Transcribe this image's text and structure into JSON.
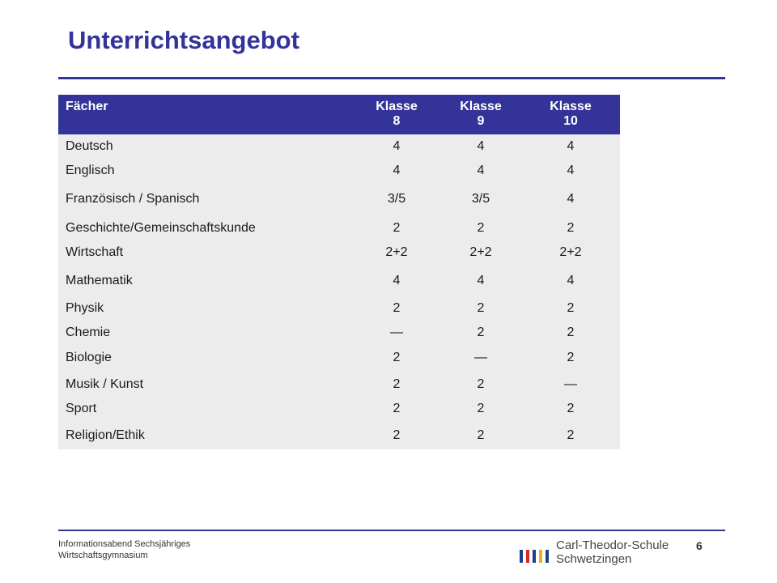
{
  "slide": {
    "title": "Unterrichtsangebot",
    "page_number": "6",
    "footer_line1": "Informationsabend Sechsjähriges",
    "footer_line2": "Wirtschaftsgymnasium"
  },
  "logo": {
    "name_line1": "Carl-Theodor-Schule",
    "name_line2": "Schwetzingen",
    "bar_colors": [
      "#1c3f8c",
      "#d52b2b",
      "#1c3f8c",
      "#e8b21a",
      "#1c3f8c"
    ]
  },
  "colors": {
    "accent": "#33339a",
    "table_background": "#ececec"
  },
  "table": {
    "header": {
      "subject": "Fächer",
      "columns": [
        {
          "line1": "Klasse",
          "line2": "8"
        },
        {
          "line1": "Klasse",
          "line2": "9"
        },
        {
          "line1": "Klasse",
          "line2": "10"
        }
      ]
    },
    "rows": [
      {
        "subject": "Deutsch",
        "values": [
          "4",
          "4",
          "4"
        ]
      },
      {
        "subject": "Englisch",
        "values": [
          "4",
          "4",
          "4"
        ]
      },
      {
        "subject": "Französisch / Spanisch",
        "values": [
          "3/5",
          "3/5",
          "4"
        ]
      },
      {
        "subject": "Geschichte/Gemeinschaftskunde",
        "values": [
          "2",
          "2",
          "2"
        ]
      },
      {
        "subject": "Wirtschaft",
        "values": [
          "2+2",
          "2+2",
          "2+2"
        ]
      },
      {
        "subject": "Mathematik",
        "values": [
          "4",
          "4",
          "4"
        ]
      },
      {
        "subject": "Physik",
        "values": [
          "2",
          "2",
          "2"
        ]
      },
      {
        "subject": "Chemie",
        "values": [
          "—",
          "2",
          "2"
        ]
      },
      {
        "subject": "Biologie",
        "values": [
          "2",
          "—",
          "2"
        ]
      },
      {
        "subject": "Musik / Kunst",
        "values": [
          "2",
          "2",
          "—"
        ]
      },
      {
        "subject": "Sport",
        "values": [
          "2",
          "2",
          "2"
        ]
      },
      {
        "subject": "Religion/Ethik",
        "values": [
          "2",
          "2",
          "2"
        ]
      }
    ]
  }
}
